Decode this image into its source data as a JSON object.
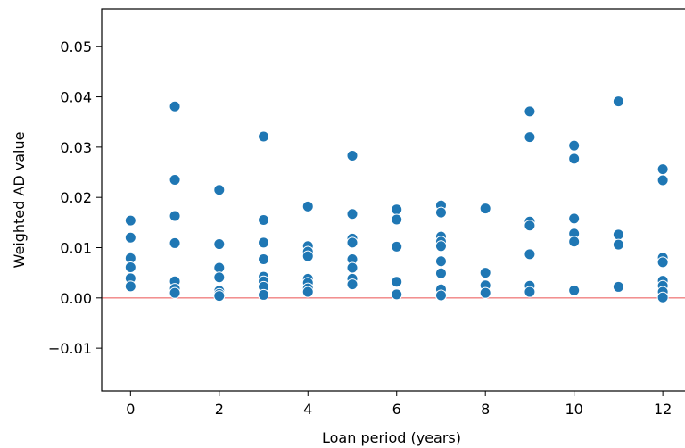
{
  "chart_data": {
    "type": "scatter",
    "xlabel": "Loan period (years)",
    "ylabel": "Weighted AD value",
    "xlim": [
      -0.65,
      12.5
    ],
    "ylim": [
      -0.0185,
      0.0575
    ],
    "xticks": [
      0,
      2,
      4,
      6,
      8,
      10,
      12
    ],
    "xtick_labels": [
      "0",
      "2",
      "4",
      "6",
      "8",
      "10",
      "12"
    ],
    "yticks": [
      -0.01,
      0.0,
      0.01,
      0.02,
      0.03,
      0.04,
      0.05
    ],
    "ytick_labels": [
      "−0.01",
      "0.00",
      "0.01",
      "0.02",
      "0.03",
      "0.04",
      "0.05"
    ],
    "reference_line": {
      "y": 0.0,
      "color": "#f08080"
    },
    "grid": false,
    "marker_color": "#1f77b4",
    "points": [
      {
        "x": 0,
        "y": 0.0154
      },
      {
        "x": 0,
        "y": 0.012
      },
      {
        "x": 0,
        "y": 0.0081
      },
      {
        "x": 0,
        "y": 0.0079
      },
      {
        "x": 0,
        "y": 0.0061
      },
      {
        "x": 0,
        "y": 0.0039
      },
      {
        "x": 0,
        "y": 0.0023
      },
      {
        "x": 1,
        "y": 0.0381
      },
      {
        "x": 1,
        "y": 0.0235
      },
      {
        "x": 1,
        "y": 0.0163
      },
      {
        "x": 1,
        "y": 0.0109
      },
      {
        "x": 1,
        "y": 0.0033
      },
      {
        "x": 1,
        "y": 0.0018
      },
      {
        "x": 1,
        "y": 0.001
      },
      {
        "x": 2,
        "y": 0.0215
      },
      {
        "x": 2,
        "y": 0.0107
      },
      {
        "x": 2,
        "y": 0.006
      },
      {
        "x": 2,
        "y": 0.0041
      },
      {
        "x": 2,
        "y": 0.0014
      },
      {
        "x": 2,
        "y": 0.0008
      },
      {
        "x": 2,
        "y": 0.0004
      },
      {
        "x": 3,
        "y": 0.0321
      },
      {
        "x": 3,
        "y": 0.0155
      },
      {
        "x": 3,
        "y": 0.011
      },
      {
        "x": 3,
        "y": 0.0077
      },
      {
        "x": 3,
        "y": 0.0042
      },
      {
        "x": 3,
        "y": 0.0033
      },
      {
        "x": 3,
        "y": 0.0022
      },
      {
        "x": 3,
        "y": 0.0006
      },
      {
        "x": 4,
        "y": 0.0182
      },
      {
        "x": 4,
        "y": 0.0103
      },
      {
        "x": 4,
        "y": 0.0092
      },
      {
        "x": 4,
        "y": 0.0083
      },
      {
        "x": 4,
        "y": 0.0038
      },
      {
        "x": 4,
        "y": 0.003
      },
      {
        "x": 4,
        "y": 0.0019
      },
      {
        "x": 4,
        "y": 0.0012
      },
      {
        "x": 5,
        "y": 0.0283
      },
      {
        "x": 5,
        "y": 0.0167
      },
      {
        "x": 5,
        "y": 0.0118
      },
      {
        "x": 5,
        "y": 0.011
      },
      {
        "x": 5,
        "y": 0.0077
      },
      {
        "x": 5,
        "y": 0.006
      },
      {
        "x": 5,
        "y": 0.0038
      },
      {
        "x": 5,
        "y": 0.0027
      },
      {
        "x": 6,
        "y": 0.0176
      },
      {
        "x": 6,
        "y": 0.0156
      },
      {
        "x": 6,
        "y": 0.0102
      },
      {
        "x": 6,
        "y": 0.0032
      },
      {
        "x": 6,
        "y": 0.0007
      },
      {
        "x": 7,
        "y": 0.0184
      },
      {
        "x": 7,
        "y": 0.017
      },
      {
        "x": 7,
        "y": 0.0122
      },
      {
        "x": 7,
        "y": 0.0112
      },
      {
        "x": 7,
        "y": 0.0103
      },
      {
        "x": 7,
        "y": 0.0073
      },
      {
        "x": 7,
        "y": 0.0049
      },
      {
        "x": 7,
        "y": 0.0017
      },
      {
        "x": 7,
        "y": 0.0005
      },
      {
        "x": 8,
        "y": 0.0178
      },
      {
        "x": 8,
        "y": 0.005
      },
      {
        "x": 8,
        "y": 0.0025
      },
      {
        "x": 8,
        "y": 0.001
      },
      {
        "x": 9,
        "y": 0.0371
      },
      {
        "x": 9,
        "y": 0.032
      },
      {
        "x": 9,
        "y": 0.0152
      },
      {
        "x": 9,
        "y": 0.0144
      },
      {
        "x": 9,
        "y": 0.0087
      },
      {
        "x": 9,
        "y": 0.0024
      },
      {
        "x": 9,
        "y": 0.0012
      },
      {
        "x": 10,
        "y": 0.0303
      },
      {
        "x": 10,
        "y": 0.0277
      },
      {
        "x": 10,
        "y": 0.0158
      },
      {
        "x": 10,
        "y": 0.0128
      },
      {
        "x": 10,
        "y": 0.0112
      },
      {
        "x": 10,
        "y": 0.0015
      },
      {
        "x": 11,
        "y": 0.0391
      },
      {
        "x": 11,
        "y": 0.0126
      },
      {
        "x": 11,
        "y": 0.0106
      },
      {
        "x": 11,
        "y": 0.0022
      },
      {
        "x": 12,
        "y": 0.0256
      },
      {
        "x": 12,
        "y": 0.0234
      },
      {
        "x": 12,
        "y": 0.008
      },
      {
        "x": 12,
        "y": 0.0071
      },
      {
        "x": 12,
        "y": 0.0034
      },
      {
        "x": 12,
        "y": 0.0024
      },
      {
        "x": 12,
        "y": 0.0012
      },
      {
        "x": 12,
        "y": 0.0001
      }
    ]
  }
}
